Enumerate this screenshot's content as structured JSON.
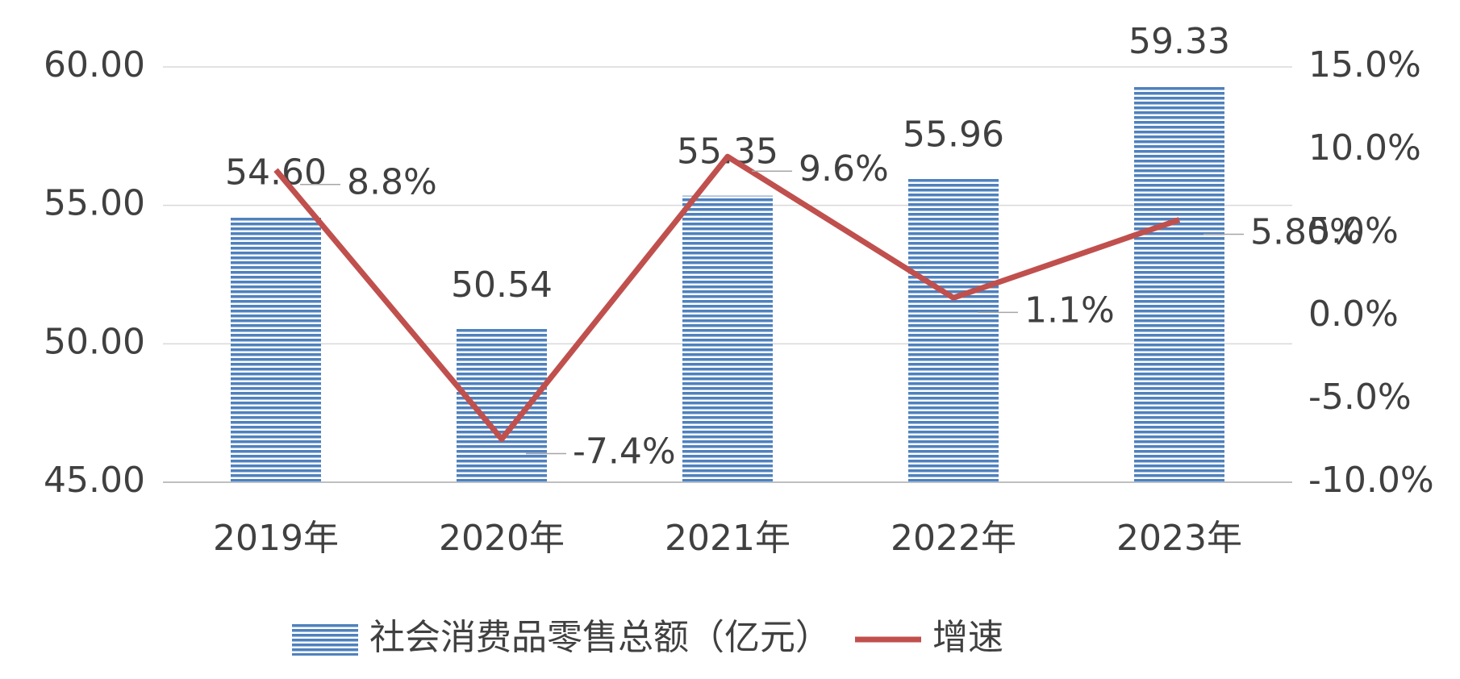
{
  "chart_data": {
    "type": "combo",
    "categories": [
      "2019年",
      "2020年",
      "2021年",
      "2022年",
      "2023年"
    ],
    "series": [
      {
        "name": "社会消费品零售总额（亿元）",
        "type": "bar",
        "color": "#4f81bd",
        "values": [
          54.6,
          50.54,
          55.35,
          55.96,
          59.33
        ],
        "value_labels": [
          "54.60",
          "50.54",
          "55.35",
          "55.96",
          "59.33"
        ]
      },
      {
        "name": "增速",
        "type": "line",
        "axis": "y2",
        "color": "#c0504d",
        "values": [
          8.8,
          -7.4,
          9.6,
          1.1,
          5.8
        ],
        "value_labels": [
          "8.8%",
          "-7.4%",
          "9.6%",
          "1.1%",
          "5.80%"
        ]
      }
    ],
    "ylim": [
      45,
      60
    ],
    "yticks": [
      {
        "value": 45,
        "label": "45.00"
      },
      {
        "value": 50,
        "label": "50.00"
      },
      {
        "value": 55,
        "label": "55.00"
      },
      {
        "value": 60,
        "label": "60.00"
      }
    ],
    "y2lim": [
      -10,
      15
    ],
    "y2ticks": [
      {
        "value": -10,
        "label": "-10.0%"
      },
      {
        "value": -5,
        "label": "-5.0%"
      },
      {
        "value": 0,
        "label": "0.0%"
      },
      {
        "value": 5,
        "label": "5.0%"
      },
      {
        "value": 10,
        "label": "10.0%"
      },
      {
        "value": 15,
        "label": "15.0%"
      }
    ],
    "grid": true,
    "legend": "bottom"
  }
}
